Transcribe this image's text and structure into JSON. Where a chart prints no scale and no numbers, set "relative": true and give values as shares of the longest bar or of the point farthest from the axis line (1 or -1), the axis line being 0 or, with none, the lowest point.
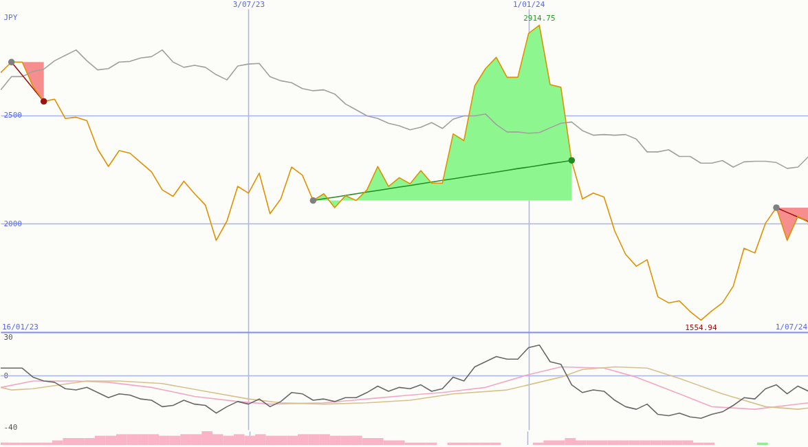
{
  "chart_data": [
    {
      "type": "line",
      "ylabel": "JPY",
      "x": [
        "2023-01-23",
        "2023-01-30",
        "2023-02-06",
        "2023-02-13",
        "2023-02-20",
        "2023-02-27",
        "2023-03-06",
        "2023-03-13",
        "2023-03-20",
        "2023-03-27",
        "2023-04-03",
        "2023-04-10",
        "2023-04-17",
        "2023-04-24",
        "2023-05-01",
        "2023-05-08",
        "2023-05-15",
        "2023-05-22",
        "2023-05-29",
        "2023-06-05",
        "2023-06-12",
        "2023-06-19",
        "2023-06-26",
        "2023-07-03",
        "2023-07-10",
        "2023-07-17",
        "2023-07-24",
        "2023-07-31",
        "2023-08-07",
        "2023-08-14",
        "2023-08-21",
        "2023-08-28",
        "2023-09-04",
        "2023-09-11",
        "2023-09-18",
        "2023-09-25",
        "2023-10-02",
        "2023-10-09",
        "2023-10-16",
        "2023-10-23",
        "2023-10-30",
        "2023-11-06",
        "2023-11-13",
        "2023-11-20",
        "2023-11-27",
        "2023-12-04",
        "2023-12-11",
        "2023-12-18",
        "2023-12-25",
        "2024-01-01",
        "2024-01-08",
        "2024-01-15",
        "2024-01-22",
        "2024-01-29",
        "2024-02-05",
        "2024-02-12",
        "2024-02-19",
        "2024-02-26",
        "2024-03-04",
        "2024-03-11",
        "2024-03-18",
        "2024-03-25",
        "2024-04-01",
        "2024-04-08",
        "2024-04-15",
        "2024-04-22",
        "2024-04-29",
        "2024-05-06",
        "2024-05-13",
        "2024-05-20",
        "2024-05-27",
        "2024-06-03",
        "2024-06-10",
        "2024-06-17",
        "2024-06-24",
        "2024-07-01"
      ],
      "xlim": [
        "2023-01-23",
        "2024-07-01"
      ],
      "xticks": [
        {
          "value": "2023-07-03",
          "label": "3/07/23"
        },
        {
          "value": "2024-01-01",
          "label": "1/01/24"
        }
      ],
      "ylim": [
        1500,
        2990
      ],
      "yticks": [
        2000,
        2500
      ],
      "grid": true,
      "annotations": [
        "16/01/23",
        "1/07/24",
        {
          "text": "2914.75",
          "x": "2024-01-08",
          "y": 2914.75
        },
        {
          "text": "1554.94",
          "x": "2024-04-22",
          "y": 1554.94
        }
      ],
      "series": [
        {
          "color": "#a0a0a0",
          "values": [
            2617,
            2678,
            2678,
            2702,
            2712,
            2751,
            2776,
            2801,
            2751,
            2709,
            2715,
            2745,
            2748,
            2764,
            2770,
            2801,
            2745,
            2721,
            2730,
            2721,
            2687,
            2663,
            2727,
            2736,
            2739,
            2678,
            2659,
            2650,
            2623,
            2613,
            2617,
            2598,
            2552,
            2525,
            2497,
            2485,
            2463,
            2451,
            2433,
            2445,
            2466,
            2439,
            2482,
            2497,
            2497,
            2506,
            2457,
            2423,
            2423,
            2417,
            2420,
            2442,
            2463,
            2469,
            2429,
            2408,
            2411,
            2408,
            2411,
            2390,
            2331,
            2331,
            2341,
            2310,
            2310,
            2279,
            2279,
            2291,
            2261,
            2285,
            2288,
            2288,
            2282,
            2255,
            2261,
            2310
          ]
        },
        {
          "type": "line",
          "color": "#228b22",
          "x": [
            "2023-08-14",
            "2023-08-21",
            "2023-08-28",
            "2023-09-04",
            "2023-09-11",
            "2023-09-18",
            "2023-09-25",
            "2023-10-02",
            "2023-10-09",
            "2023-10-16",
            "2023-10-23",
            "2023-10-30",
            "2023-11-06",
            "2023-11-13",
            "2023-11-20",
            "2023-11-27",
            "2023-12-04",
            "2023-12-11",
            "2023-12-18",
            "2023-12-25",
            "2024-01-01",
            "2024-01-08",
            "2024-01-15",
            "2024-01-22",
            "2024-01-29"
          ],
          "values": [
            2107,
            2115,
            2122,
            2130,
            2138,
            2146,
            2153,
            2161,
            2169,
            2176,
            2184,
            2192,
            2200,
            2207,
            2215,
            2223,
            2230,
            2238,
            2246,
            2254,
            2261,
            2269,
            2277,
            2284,
            2292
          ],
          "lower": [
            2107,
            2107,
            2107,
            2107,
            2107,
            2107,
            2107,
            2107,
            2107,
            2107,
            2107,
            2107,
            2107,
            2107,
            2107,
            2107,
            2107,
            2107,
            2107,
            2107,
            2107,
            2107,
            2107,
            2107,
            2107
          ],
          "upper": [
            2107,
            2138,
            2074,
            2129,
            2107,
            2156,
            2264,
            2172,
            2212,
            2184,
            2245,
            2187,
            2187,
            2414,
            2383,
            2635,
            2715,
            2767,
            2675,
            2675,
            2877,
            2914.75,
            2641,
            2629,
            2288
          ]
        },
        {
          "type": "line",
          "color": "#a01010",
          "x": [
            "2023-01-30",
            "2023-02-06",
            "2023-02-13",
            "2023-02-20"
          ],
          "values": [
            2745,
            2685,
            2624,
            2564
          ],
          "lower": [
            2745,
            2745,
            2633,
            2564
          ],
          "upper": [
            2745,
            2745,
            2745,
            2745
          ]
        },
        {
          "type": "line",
          "color": "#a01010",
          "x": [
            "2024-06-10",
            "2024-06-17",
            "2024-06-24",
            "2024-07-01"
          ],
          "values": [
            2074,
            2052,
            2031,
            2009
          ],
          "lower": [
            2074,
            1923,
            2034,
            2006
          ],
          "upper": [
            2074,
            2074,
            2074,
            2074
          ]
        },
        {
          "color": "#e09000",
          "values": [
            2696,
            2745,
            2745,
            2633,
            2564,
            2574,
            2485,
            2491,
            2475,
            2344,
            2264,
            2337,
            2325,
            2282,
            2239,
            2156,
            2126,
            2196,
            2138,
            2086,
            1923,
            2012,
            2172,
            2141,
            2233,
            2046,
            2114,
            2261,
            2224,
            2107,
            2138,
            2074,
            2129,
            2107,
            2156,
            2264,
            2172,
            2212,
            2184,
            2245,
            2187,
            2187,
            2414,
            2383,
            2635,
            2715,
            2767,
            2675,
            2675,
            2877,
            2914.75,
            2641,
            2629,
            2288,
            2114,
            2141,
            2123,
            1966,
            1859,
            1804,
            1834,
            1663,
            1635,
            1644,
            1595,
            1554.94,
            1598,
            1635,
            1712,
            1887,
            1865,
            2003,
            2074,
            1923,
            2034,
            2006
          ]
        },
        {
          "type": "scatter",
          "color": "#808080",
          "marker": "circle",
          "x": [
            "2023-01-30",
            "2023-08-14",
            "2024-06-10"
          ],
          "values": [
            2745,
            2107,
            2074
          ]
        },
        {
          "type": "scatter",
          "color": "#a01010",
          "marker": "circle",
          "x": [
            "2023-02-20"
          ],
          "values": [
            2564
          ]
        },
        {
          "type": "scatter",
          "color": "#228b22",
          "marker": "circle",
          "x": [
            "2024-01-29"
          ],
          "values": [
            2292
          ]
        }
      ]
    },
    {
      "type": "line",
      "x": [
        "2023-01-23",
        "2023-01-30",
        "2023-02-06",
        "2023-02-13",
        "2023-02-20",
        "2023-02-27",
        "2023-03-06",
        "2023-03-13",
        "2023-03-20",
        "2023-03-27",
        "2023-04-03",
        "2023-04-10",
        "2023-04-17",
        "2023-04-24",
        "2023-05-01",
        "2023-05-08",
        "2023-05-15",
        "2023-05-22",
        "2023-05-29",
        "2023-06-05",
        "2023-06-12",
        "2023-06-19",
        "2023-06-26",
        "2023-07-03",
        "2023-07-10",
        "2023-07-17",
        "2023-07-24",
        "2023-07-31",
        "2023-08-07",
        "2023-08-14",
        "2023-08-21",
        "2023-08-28",
        "2023-09-04",
        "2023-09-11",
        "2023-09-18",
        "2023-09-25",
        "2023-10-02",
        "2023-10-09",
        "2023-10-16",
        "2023-10-23",
        "2023-10-30",
        "2023-11-06",
        "2023-11-13",
        "2023-11-20",
        "2023-11-27",
        "2023-12-04",
        "2023-12-11",
        "2023-12-18",
        "2023-12-25",
        "2024-01-01",
        "2024-01-08",
        "2024-01-15",
        "2024-01-22",
        "2024-01-29",
        "2024-02-05",
        "2024-02-12",
        "2024-02-19",
        "2024-02-26",
        "2024-03-04",
        "2024-03-11",
        "2024-03-18",
        "2024-03-25",
        "2024-04-01",
        "2024-04-08",
        "2024-04-15",
        "2024-04-22",
        "2024-04-29",
        "2024-05-06",
        "2024-05-13",
        "2024-05-20",
        "2024-05-27",
        "2024-06-03",
        "2024-06-10",
        "2024-06-17",
        "2024-06-24",
        "2024-07-01"
      ],
      "xlim": [
        "2023-01-23",
        "2024-07-01"
      ],
      "xticks": [
        {
          "value": "2023-07-03",
          "label": null
        },
        {
          "value": "2024-01-01",
          "label": null
        }
      ],
      "ylim": [
        -42,
        34
      ],
      "yticks": [
        -40,
        0,
        30
      ],
      "grid": "x",
      "tick_labels": "y",
      "ref_lines": [
        {
          "axis": "y",
          "value": 0,
          "color": "#a8b4f0"
        }
      ],
      "series": [
        {
          "color": "#f4a6c4",
          "x": [
            "2023-01-23",
            "2023-02-13",
            "2023-03-13",
            "2023-04-03",
            "2023-05-01",
            "2023-05-29",
            "2023-06-26",
            "2023-07-17",
            "2023-08-21",
            "2023-09-18",
            "2023-10-16",
            "2023-11-06",
            "2023-12-04",
            "2024-01-01",
            "2024-01-22",
            "2024-02-19",
            "2024-03-11",
            "2024-04-08",
            "2024-04-29",
            "2024-05-27",
            "2024-07-01"
          ],
          "values": [
            -9,
            -4,
            -4,
            -5,
            -9,
            -16,
            -20,
            -22,
            -21,
            -18,
            -15,
            -13,
            -9,
            1,
            7,
            6,
            -1,
            -14,
            -24,
            -26,
            -21
          ]
        },
        {
          "color": "#d9bf8c",
          "x": [
            "2023-01-23",
            "2023-01-30",
            "2023-02-13",
            "2023-03-20",
            "2023-04-10",
            "2023-05-08",
            "2023-06-05",
            "2023-07-03",
            "2023-07-24",
            "2023-08-21",
            "2023-09-18",
            "2023-10-16",
            "2023-11-13",
            "2023-12-18",
            "2024-01-22",
            "2024-02-05",
            "2024-02-26",
            "2024-03-18",
            "2024-04-08",
            "2024-05-06",
            "2024-06-03",
            "2024-06-24",
            "2024-07-01"
          ],
          "values": [
            -9,
            -11,
            -10,
            -4,
            -4,
            -6,
            -12,
            -18,
            -21,
            -22,
            -21,
            -19,
            -14,
            -11,
            -1,
            5,
            7,
            6,
            -2,
            -14,
            -24,
            -26,
            -25
          ]
        },
        {
          "color": "#666666",
          "values": [
            6,
            6,
            6,
            -1,
            -4,
            -5,
            -10,
            -11,
            -9,
            -13,
            -17,
            -14,
            -15,
            -18,
            -19,
            -24,
            -23,
            -19,
            -22,
            -23,
            -29,
            -24,
            -20,
            -22,
            -18,
            -24,
            -20,
            -13,
            -14,
            -19,
            -18,
            -20,
            -17,
            -17,
            -13,
            -8,
            -12,
            -9,
            -10,
            -7,
            -12,
            -10,
            -1,
            -4,
            7,
            11,
            15,
            13,
            13,
            22,
            24,
            11,
            9,
            -7,
            -13,
            -11,
            -12,
            -19,
            -24,
            -26,
            -22,
            -30,
            -31,
            -29,
            -32,
            -33,
            -30,
            -28,
            -23,
            -17,
            -18,
            -10,
            -7,
            -14,
            -8,
            -12
          ]
        }
      ]
    },
    {
      "type": "bar",
      "relative": true,
      "x": [
        "2023-01-23",
        "2023-01-30",
        "2023-02-06",
        "2023-02-13",
        "2023-02-20",
        "2023-02-27",
        "2023-03-06",
        "2023-03-13",
        "2023-03-20",
        "2023-03-27",
        "2023-04-03",
        "2023-04-10",
        "2023-04-17",
        "2023-04-24",
        "2023-05-01",
        "2023-05-08",
        "2023-05-15",
        "2023-05-22",
        "2023-05-29",
        "2023-06-05",
        "2023-06-12",
        "2023-06-19",
        "2023-06-26",
        "2023-07-03",
        "2023-07-10",
        "2023-07-17",
        "2023-07-24",
        "2023-07-31",
        "2023-08-07",
        "2023-08-14",
        "2023-08-21",
        "2023-08-28",
        "2023-09-04",
        "2023-09-11",
        "2023-09-18",
        "2023-09-25",
        "2023-10-02",
        "2023-10-09",
        "2023-10-16",
        "2023-10-23",
        "2023-10-30",
        "2023-11-06",
        "2023-11-13",
        "2023-11-20",
        "2023-11-27",
        "2023-12-04",
        "2023-12-11",
        "2023-12-18",
        "2023-12-25",
        "2024-01-01",
        "2024-01-08",
        "2024-01-15",
        "2024-01-22",
        "2024-01-29",
        "2024-02-05",
        "2024-02-12",
        "2024-02-19",
        "2024-02-26",
        "2024-03-04",
        "2024-03-11",
        "2024-03-18",
        "2024-03-25",
        "2024-04-01",
        "2024-04-08",
        "2024-04-15",
        "2024-04-22",
        "2024-04-29"
      ],
      "xlim": [
        "2023-01-23",
        "2024-07-01"
      ],
      "xticks": [
        {
          "value": "2023-07-03",
          "label": null
        },
        {
          "value": "2024-01-01",
          "label": null
        }
      ],
      "grid": "x",
      "tick_labels": false,
      "series": [
        {
          "color": "#f9b4c8",
          "values": [
            0.17,
            0.17,
            0.17,
            0.17,
            0.17,
            0.33,
            0.5,
            0.5,
            0.5,
            0.67,
            0.67,
            0.78,
            0.78,
            0.78,
            0.78,
            0.67,
            0.67,
            0.78,
            0.78,
            1,
            0.78,
            0.67,
            0.78,
            0.67,
            0.78,
            0.67,
            0.67,
            0.67,
            0.78,
            0.78,
            0.78,
            0.67,
            0.67,
            0.67,
            0.5,
            0.5,
            0.33,
            0.33,
            0.17,
            0.17,
            0.17,
            null,
            0.17,
            0.17,
            0.17,
            0.17,
            0.17,
            null,
            null,
            null,
            0.17,
            0.33,
            0.33,
            0.5,
            0.33,
            0.33,
            0.33,
            0.33,
            0.33,
            0.33,
            0.33,
            0.33,
            0.33,
            0.33,
            0.33,
            0.17,
            0.17
          ]
        },
        {
          "color": "#90ee90",
          "x": [
            "2024-06-03"
          ],
          "values": [
            0.17
          ]
        }
      ]
    }
  ]
}
